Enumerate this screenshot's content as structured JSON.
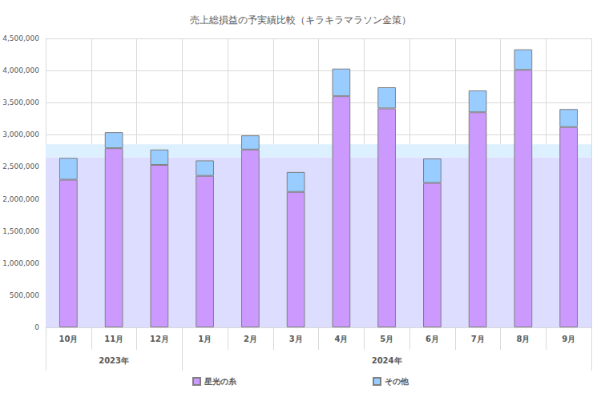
{
  "chart_data": {
    "type": "bar",
    "stacked": true,
    "grid": true,
    "legend": "bottom",
    "title": "売上総損益の予実績比較（キラキラマラソン金策）",
    "categories": [
      "10月",
      "11月",
      "12月",
      "1月",
      "2月",
      "3月",
      "4月",
      "5月",
      "6月",
      "7月",
      "8月",
      "9月"
    ],
    "x_groups": [
      {
        "label": "2023年",
        "span": 3
      },
      {
        "label": "2024年",
        "span": 9
      }
    ],
    "series": [
      {
        "name": "星光の糸",
        "color": "#cc99ff",
        "values": [
          2300000,
          2790000,
          2530000,
          2360000,
          2770000,
          2110000,
          3600000,
          3410000,
          2250000,
          3350000,
          4010000,
          3120000
        ]
      },
      {
        "name": "その他",
        "color": "#99ccff",
        "values": [
          340000,
          250000,
          240000,
          240000,
          220000,
          310000,
          430000,
          330000,
          380000,
          340000,
          320000,
          280000
        ]
      }
    ],
    "bands": [
      {
        "from": 0,
        "to": 2650000,
        "color": "#ddddff"
      },
      {
        "from": 2650000,
        "to": 2850000,
        "color": "#ddf0ff"
      }
    ],
    "ylim": [
      0,
      4500000
    ],
    "yticks": [
      0,
      {
        "value": 500000,
        "label": "500,000"
      },
      {
        "value": 1000000,
        "label": "1,000,000"
      },
      {
        "value": 1500000,
        "label": "1,500,000"
      },
      {
        "value": 2000000,
        "label": "2,000,000"
      },
      {
        "value": 2500000,
        "label": "2,500,000"
      },
      {
        "value": 3000000,
        "label": "3,000,000"
      },
      {
        "value": 3500000,
        "label": "3,500,000"
      },
      {
        "value": 4000000,
        "label": "4,000,000"
      },
      {
        "value": 4500000,
        "label": "4,500,000"
      }
    ]
  }
}
